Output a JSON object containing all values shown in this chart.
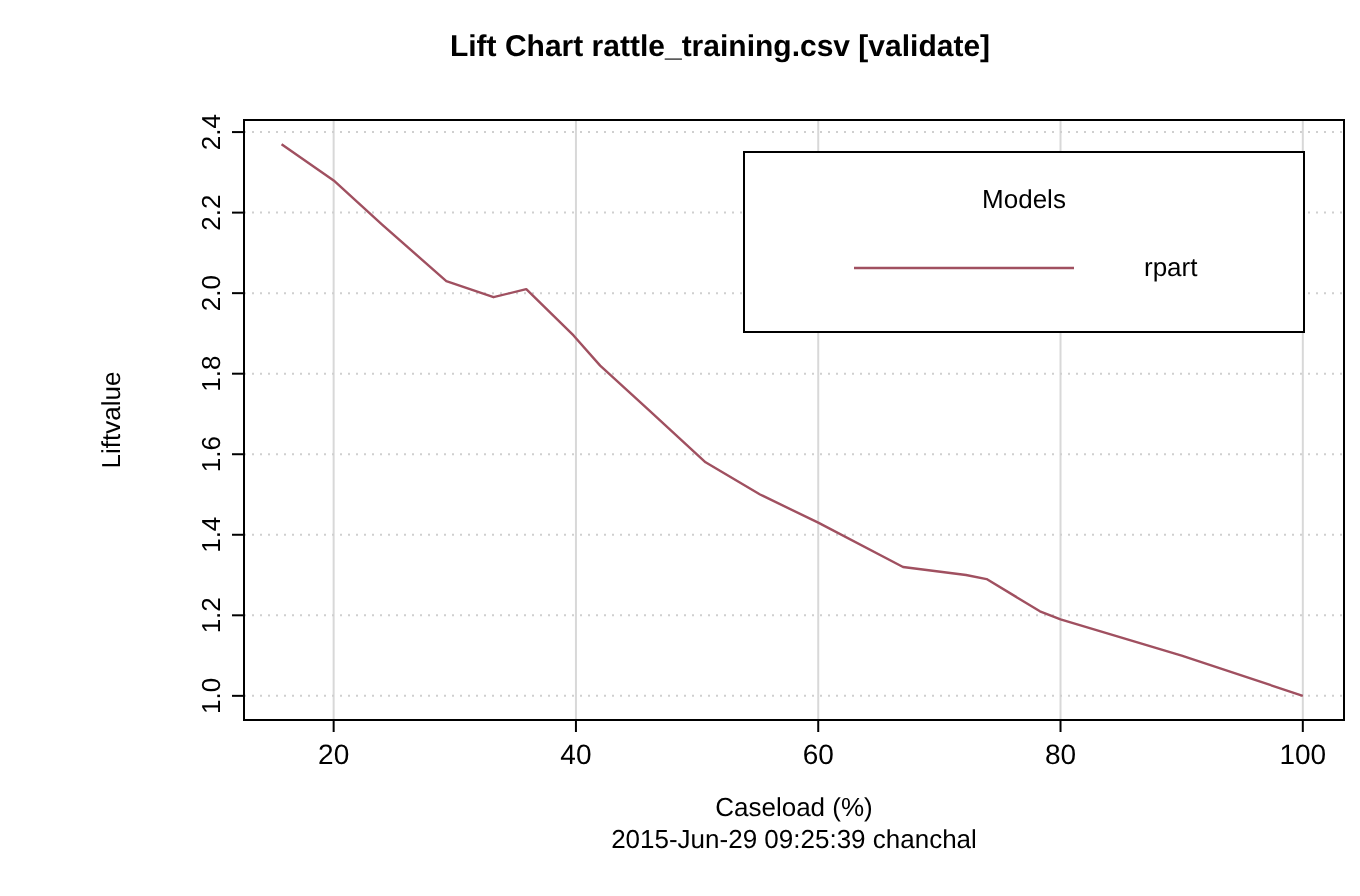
{
  "chart_data": {
    "type": "line",
    "title": "Lift Chart  rattle_training.csv [validate]",
    "xlabel": "Caseload (%)",
    "ylabel": "Liftvalue",
    "legend_title": "Models",
    "annotations": [
      "2015-Jun-29 09:25:39 chanchal"
    ],
    "x": [
      15.7,
      20,
      24,
      29.3,
      33.2,
      35.9,
      39.8,
      42,
      46,
      50.7,
      55.2,
      60,
      67,
      72.2,
      73.9,
      78.3,
      80,
      90,
      100
    ],
    "series": [
      {
        "name": "rpart",
        "color": "#a05060",
        "values": [
          2.37,
          2.28,
          2.17,
          2.03,
          1.99,
          2.01,
          1.895,
          1.82,
          1.71,
          1.58,
          1.5,
          1.43,
          1.32,
          1.3,
          1.29,
          1.21,
          1.19,
          1.1,
          1.0
        ]
      }
    ],
    "xlim": [
      12.6,
      103.4
    ],
    "ylim": [
      0.94,
      2.43
    ],
    "xticks": [
      20,
      40,
      60,
      80,
      100
    ],
    "yticks": [
      {
        "value": 1,
        "label": "1.0"
      },
      {
        "value": 1.2,
        "label": "1.2"
      },
      {
        "value": 1.4,
        "label": "1.4"
      },
      {
        "value": 1.6,
        "label": "1.6"
      },
      {
        "value": 1.8,
        "label": "1.8"
      },
      {
        "value": 2,
        "label": "2.0"
      },
      {
        "value": 2.2,
        "label": "2.2"
      },
      {
        "value": 2.4,
        "label": "2.4"
      }
    ],
    "grid": true,
    "legend": "top right",
    "marker": "none",
    "line_style": "solid"
  }
}
